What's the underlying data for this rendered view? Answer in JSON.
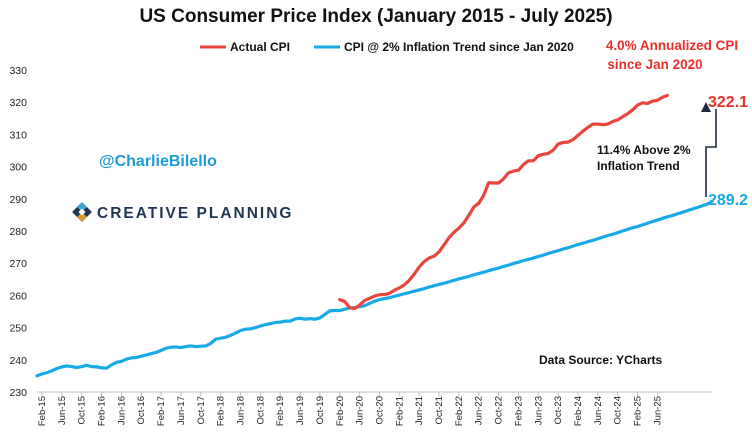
{
  "chart_data": {
    "type": "line",
    "title": "US Consumer Price Index (January 2015 -  July 2025)",
    "xlabel": "",
    "ylabel": "",
    "ylim": [
      230,
      330
    ],
    "yticks": [
      230,
      240,
      250,
      260,
      270,
      280,
      290,
      300,
      310,
      320,
      330
    ],
    "xticks": [
      "Feb-15",
      "Jun-15",
      "Oct-15",
      "Feb-16",
      "Jun-16",
      "Oct-16",
      "Feb-17",
      "Jun-17",
      "Oct-17",
      "Feb-18",
      "Jun-18",
      "Oct-18",
      "Feb-19",
      "Jun-19",
      "Oct-19",
      "Feb-20",
      "Jun-20",
      "Oct-20",
      "Feb-21",
      "Jun-21",
      "Oct-21",
      "Feb-22",
      "Jun-22",
      "Oct-22",
      "Feb-23",
      "Jun-23",
      "Oct-23",
      "Feb-24",
      "Jun-24",
      "Oct-24",
      "Feb-25",
      "Jun-25"
    ],
    "grid": false,
    "legend_placement": "top-center",
    "series": [
      {
        "name": "Actual CPI",
        "color": "#e8453c",
        "points": [
          [
            61,
            258.7
          ],
          [
            62,
            258.1
          ],
          [
            63,
            256.2
          ],
          [
            64,
            255.9
          ],
          [
            65,
            257.0
          ],
          [
            66,
            258.4
          ],
          [
            67,
            259.1
          ],
          [
            68,
            259.8
          ],
          [
            69,
            260.2
          ],
          [
            70,
            260.3
          ],
          [
            71,
            260.6
          ],
          [
            72,
            261.6
          ],
          [
            73,
            262.3
          ],
          [
            74,
            263.3
          ],
          [
            75,
            264.7
          ],
          [
            76,
            266.6
          ],
          [
            77,
            268.8
          ],
          [
            78,
            270.5
          ],
          [
            79,
            271.6
          ],
          [
            80,
            272.2
          ],
          [
            81,
            273.5
          ],
          [
            82,
            275.7
          ],
          [
            83,
            277.9
          ],
          [
            84,
            279.6
          ],
          [
            85,
            280.9
          ],
          [
            86,
            282.5
          ],
          [
            87,
            284.9
          ],
          [
            88,
            287.4
          ],
          [
            89,
            288.6
          ],
          [
            90,
            291.1
          ],
          [
            91,
            295.0
          ],
          [
            92,
            294.9
          ],
          [
            93,
            294.9
          ],
          [
            94,
            296.2
          ],
          [
            95,
            298.1
          ],
          [
            96,
            298.6
          ],
          [
            97,
            298.9
          ],
          [
            98,
            300.6
          ],
          [
            99,
            301.8
          ],
          [
            100,
            301.8
          ],
          [
            101,
            303.4
          ],
          [
            102,
            303.8
          ],
          [
            103,
            304.1
          ],
          [
            104,
            305.1
          ],
          [
            105,
            307.0
          ],
          [
            106,
            307.5
          ],
          [
            107,
            307.6
          ],
          [
            108,
            308.4
          ],
          [
            109,
            309.7
          ],
          [
            110,
            311.0
          ],
          [
            111,
            312.2
          ],
          [
            112,
            313.2
          ],
          [
            113,
            313.2
          ],
          [
            114,
            313.0
          ],
          [
            115,
            313.2
          ],
          [
            116,
            314.0
          ],
          [
            117,
            314.5
          ],
          [
            118,
            315.5
          ],
          [
            119,
            316.4
          ],
          [
            120,
            317.6
          ],
          [
            121,
            319.1
          ],
          [
            122,
            319.8
          ],
          [
            123,
            319.6
          ],
          [
            124,
            320.3
          ],
          [
            125,
            320.6
          ],
          [
            126,
            321.5
          ],
          [
            127,
            322.1
          ]
        ]
      },
      {
        "name": "CPI @ 2% Inflation Trend since Jan 2020",
        "color": "#1aa9e7",
        "points": [
          [
            0,
            235.0
          ],
          [
            1,
            235.6
          ],
          [
            2,
            236.0
          ],
          [
            3,
            236.6
          ],
          [
            4,
            237.3
          ],
          [
            5,
            237.8
          ],
          [
            6,
            238.1
          ],
          [
            7,
            237.9
          ],
          [
            8,
            237.6
          ],
          [
            9,
            237.9
          ],
          [
            10,
            238.3
          ],
          [
            11,
            237.9
          ],
          [
            12,
            237.8
          ],
          [
            13,
            237.5
          ],
          [
            14,
            237.4
          ],
          [
            15,
            238.4
          ],
          [
            16,
            239.2
          ],
          [
            17,
            239.5
          ],
          [
            18,
            240.2
          ],
          [
            19,
            240.6
          ],
          [
            20,
            240.7
          ],
          [
            21,
            241.1
          ],
          [
            22,
            241.5
          ],
          [
            23,
            241.9
          ],
          [
            24,
            242.3
          ],
          [
            25,
            242.9
          ],
          [
            26,
            243.6
          ],
          [
            27,
            243.9
          ],
          [
            28,
            244.0
          ],
          [
            29,
            243.8
          ],
          [
            30,
            244.1
          ],
          [
            31,
            244.3
          ],
          [
            32,
            244.1
          ],
          [
            33,
            244.2
          ],
          [
            34,
            244.3
          ],
          [
            35,
            245.1
          ],
          [
            36,
            246.4
          ],
          [
            37,
            246.7
          ],
          [
            38,
            247.0
          ],
          [
            39,
            247.6
          ],
          [
            40,
            248.3
          ],
          [
            41,
            249.1
          ],
          [
            42,
            249.5
          ],
          [
            43,
            249.6
          ],
          [
            44,
            250.0
          ],
          [
            45,
            250.5
          ],
          [
            46,
            250.9
          ],
          [
            47,
            251.2
          ],
          [
            48,
            251.6
          ],
          [
            49,
            251.7
          ],
          [
            50,
            252.0
          ],
          [
            51,
            252.0
          ],
          [
            52,
            252.7
          ],
          [
            53,
            252.9
          ],
          [
            54,
            252.6
          ],
          [
            55,
            252.8
          ],
          [
            56,
            252.6
          ],
          [
            57,
            253.0
          ],
          [
            58,
            254.1
          ],
          [
            59,
            255.2
          ],
          [
            60,
            255.3
          ],
          [
            61,
            255.3
          ],
          [
            62,
            255.7
          ],
          [
            63,
            256.1
          ],
          [
            64,
            256.2
          ],
          [
            65,
            256.5
          ],
          [
            66,
            256.8
          ],
          [
            67,
            257.5
          ],
          [
            68,
            258.2
          ],
          [
            69,
            258.7
          ],
          [
            70,
            259.0
          ],
          [
            71,
            259.3
          ],
          [
            72,
            259.7
          ],
          [
            73,
            260.1
          ],
          [
            74,
            260.5
          ],
          [
            75,
            260.9
          ],
          [
            76,
            261.3
          ],
          [
            77,
            261.7
          ],
          [
            78,
            262.1
          ],
          [
            79,
            262.6
          ],
          [
            80,
            263.0
          ],
          [
            81,
            263.4
          ],
          [
            82,
            263.8
          ],
          [
            83,
            264.2
          ],
          [
            84,
            264.7
          ],
          [
            85,
            265.1
          ],
          [
            86,
            265.5
          ],
          [
            87,
            265.9
          ],
          [
            88,
            266.4
          ],
          [
            89,
            266.8
          ],
          [
            90,
            267.2
          ],
          [
            91,
            267.7
          ],
          [
            92,
            268.1
          ],
          [
            93,
            268.5
          ],
          [
            94,
            269.0
          ],
          [
            95,
            269.4
          ],
          [
            96,
            269.9
          ],
          [
            97,
            270.3
          ],
          [
            98,
            270.8
          ],
          [
            99,
            271.2
          ],
          [
            100,
            271.6
          ],
          [
            101,
            272.1
          ],
          [
            102,
            272.5
          ],
          [
            103,
            273.0
          ],
          [
            104,
            273.5
          ],
          [
            105,
            273.9
          ],
          [
            106,
            274.4
          ],
          [
            107,
            274.8
          ],
          [
            108,
            275.3
          ],
          [
            109,
            275.8
          ],
          [
            110,
            276.2
          ],
          [
            111,
            276.7
          ],
          [
            112,
            277.1
          ],
          [
            113,
            277.6
          ],
          [
            114,
            278.1
          ],
          [
            115,
            278.6
          ],
          [
            116,
            279.0
          ],
          [
            117,
            279.5
          ],
          [
            118,
            280.0
          ],
          [
            119,
            280.5
          ],
          [
            120,
            281.0
          ],
          [
            121,
            281.4
          ],
          [
            122,
            281.9
          ],
          [
            123,
            282.4
          ],
          [
            124,
            282.9
          ],
          [
            125,
            283.4
          ],
          [
            126,
            283.9
          ],
          [
            127,
            284.4
          ],
          [
            128,
            284.8
          ],
          [
            129,
            285.3
          ],
          [
            130,
            285.8
          ],
          [
            131,
            286.3
          ],
          [
            132,
            286.8
          ],
          [
            133,
            287.3
          ],
          [
            134,
            287.8
          ],
          [
            135,
            288.3
          ],
          [
            136,
            289.2
          ]
        ]
      }
    ],
    "annotations": {
      "annualized_line1": "4.0% Annualized CPI",
      "annualized_line2": "since Jan 2020",
      "actual_end_value": "322.1",
      "trend_end_value": "289.2",
      "gap_line1": "11.4% Above 2%",
      "gap_line2": "Inflation Trend",
      "handle": "@CharlieBilello",
      "brand": "CREATIVE PLANNING",
      "source": "Data Source: YCharts"
    },
    "colors": {
      "actual": "#e8453c",
      "trend": "#1aa9e7",
      "brand_navy": "#1f3552",
      "brand_teal": "#3aa6c9",
      "brand_gold": "#d69b2d"
    }
  }
}
